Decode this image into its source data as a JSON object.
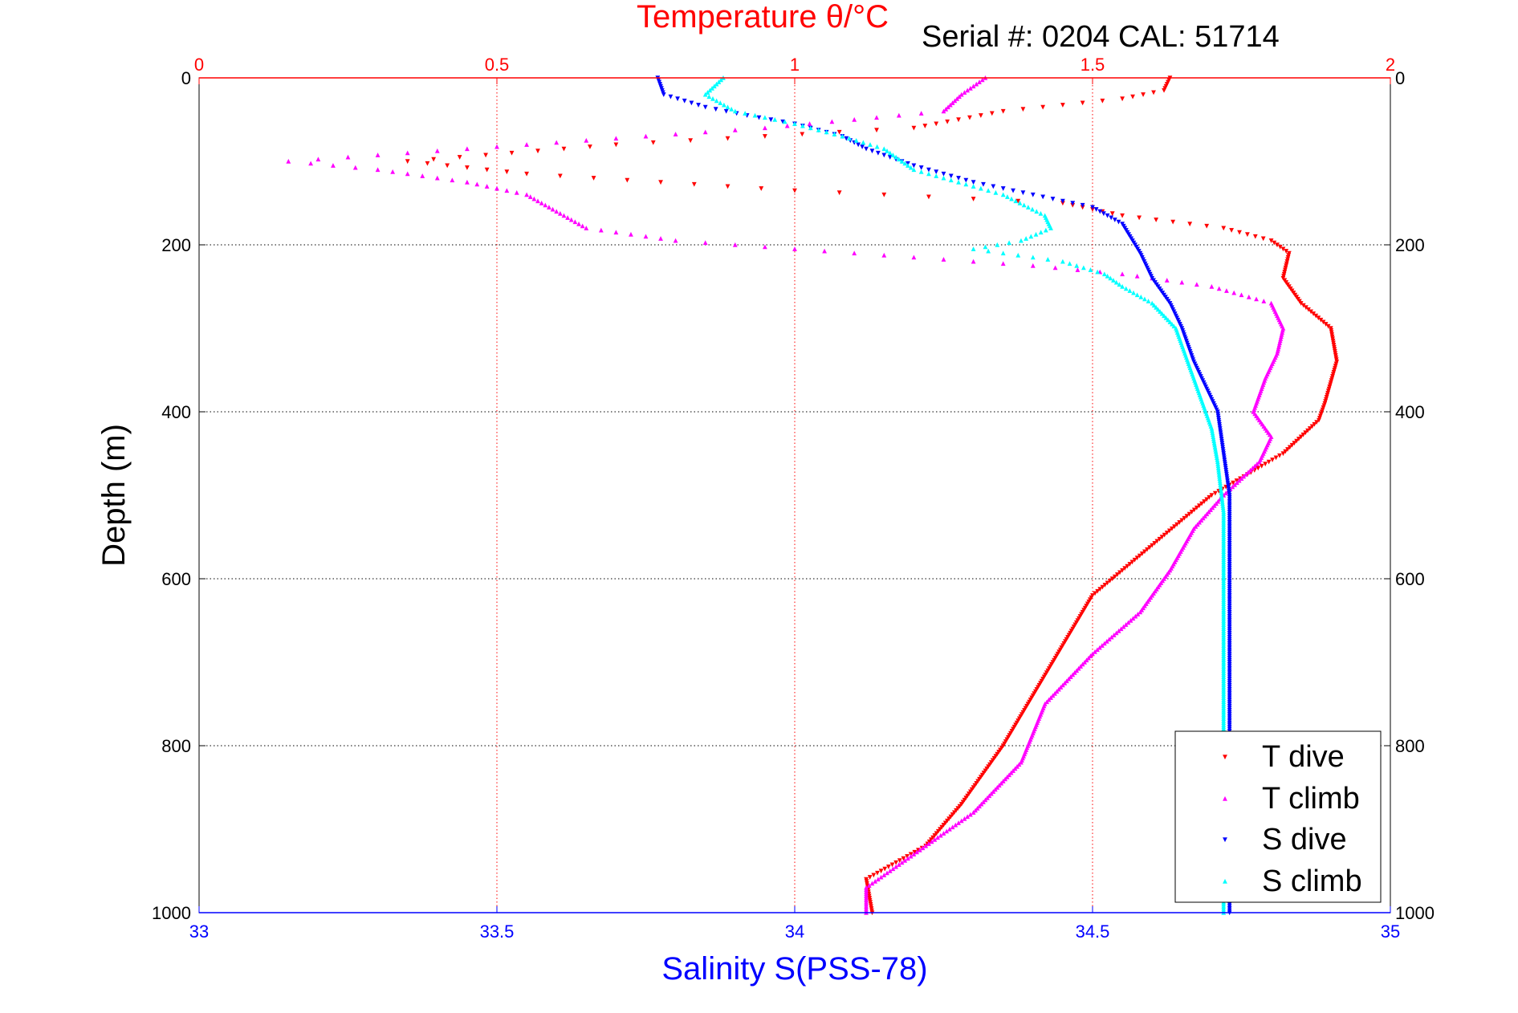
{
  "header": {
    "top_title": "Temperature θ/°C",
    "serial": "Serial #: 0204  CAL: 51714"
  },
  "chart_data": {
    "type": "scatter",
    "title": "Temperature θ/°C",
    "subtitle": "Serial #: 0204  CAL: 51714",
    "ylabel": "Depth (m)",
    "xlabel_bottom": "Salinity S(PSS-78)",
    "xlabel_top": "Temperature θ/°C",
    "y_axis": {
      "reversed": true,
      "ylim": [
        0,
        1000
      ],
      "ticks": [
        0,
        200,
        400,
        600,
        800,
        1000
      ]
    },
    "x_axis_bottom": {
      "xlim": [
        33,
        35
      ],
      "ticks": [
        33,
        33.5,
        34,
        34.5,
        35
      ],
      "tick_labels": [
        "33",
        "33.5",
        "34",
        "34.5",
        "35"
      ]
    },
    "x_axis_top": {
      "xlim": [
        0,
        2
      ],
      "ticks": [
        0,
        0.5,
        1,
        1.5,
        2
      ],
      "tick_labels": [
        "0",
        "0.5",
        "1",
        "1.5",
        "2"
      ]
    },
    "grid": true,
    "legend": {
      "placement": "bottom-right"
    },
    "colors": {
      "t_dive": "#ff0000",
      "t_climb": "#ff00ff",
      "s_dive": "#0000ff",
      "s_climb": "#00ffff",
      "top_axis": "#ff0000",
      "bottom_axis": "#0000ff"
    },
    "series": [
      {
        "name": "T dive",
        "axis": "top",
        "marker": "triangle-down",
        "points": [
          [
            1.63,
            0
          ],
          [
            1.62,
            15
          ],
          [
            1.55,
            25
          ],
          [
            1.35,
            40
          ],
          [
            1.2,
            60
          ],
          [
            0.7,
            80
          ],
          [
            0.35,
            100
          ],
          [
            0.55,
            115
          ],
          [
            1.0,
            135
          ],
          [
            1.45,
            150
          ],
          [
            1.55,
            165
          ],
          [
            1.72,
            180
          ],
          [
            1.8,
            195
          ],
          [
            1.83,
            210
          ],
          [
            1.82,
            240
          ],
          [
            1.85,
            270
          ],
          [
            1.9,
            300
          ],
          [
            1.91,
            340
          ],
          [
            1.89,
            390
          ],
          [
            1.88,
            410
          ],
          [
            1.82,
            450
          ],
          [
            1.7,
            500
          ],
          [
            1.6,
            560
          ],
          [
            1.5,
            620
          ],
          [
            1.45,
            680
          ],
          [
            1.4,
            740
          ],
          [
            1.35,
            800
          ],
          [
            1.28,
            870
          ],
          [
            1.22,
            920
          ],
          [
            1.12,
            960
          ],
          [
            1.13,
            1000
          ]
        ]
      },
      {
        "name": "T climb",
        "axis": "top",
        "marker": "triangle-up",
        "points": [
          [
            1.32,
            0
          ],
          [
            1.28,
            20
          ],
          [
            1.25,
            40
          ],
          [
            0.95,
            60
          ],
          [
            0.55,
            80
          ],
          [
            0.15,
            100
          ],
          [
            0.3,
            110
          ],
          [
            0.45,
            125
          ],
          [
            0.55,
            140
          ],
          [
            0.6,
            160
          ],
          [
            0.65,
            180
          ],
          [
            0.8,
            195
          ],
          [
            1.1,
            210
          ],
          [
            1.4,
            225
          ],
          [
            1.55,
            235
          ],
          [
            1.7,
            250
          ],
          [
            1.8,
            270
          ],
          [
            1.82,
            300
          ],
          [
            1.81,
            330
          ],
          [
            1.79,
            360
          ],
          [
            1.77,
            400
          ],
          [
            1.8,
            430
          ],
          [
            1.78,
            460
          ],
          [
            1.72,
            500
          ],
          [
            1.67,
            540
          ],
          [
            1.63,
            590
          ],
          [
            1.58,
            640
          ],
          [
            1.5,
            690
          ],
          [
            1.42,
            750
          ],
          [
            1.38,
            820
          ],
          [
            1.3,
            880
          ],
          [
            1.2,
            930
          ],
          [
            1.12,
            970
          ],
          [
            1.12,
            1000
          ]
        ]
      },
      {
        "name": "S dive",
        "axis": "bottom",
        "marker": "triangle-down",
        "points": [
          [
            33.77,
            0
          ],
          [
            33.78,
            20
          ],
          [
            33.85,
            35
          ],
          [
            33.92,
            45
          ],
          [
            34.0,
            55
          ],
          [
            34.08,
            70
          ],
          [
            34.12,
            85
          ],
          [
            34.2,
            105
          ],
          [
            34.3,
            125
          ],
          [
            34.4,
            140
          ],
          [
            34.5,
            155
          ],
          [
            34.55,
            175
          ],
          [
            34.58,
            210
          ],
          [
            34.6,
            240
          ],
          [
            34.63,
            270
          ],
          [
            34.65,
            300
          ],
          [
            34.67,
            340
          ],
          [
            34.69,
            370
          ],
          [
            34.71,
            400
          ],
          [
            34.72,
            450
          ],
          [
            34.73,
            500
          ],
          [
            34.73,
            600
          ],
          [
            34.73,
            700
          ],
          [
            34.73,
            800
          ],
          [
            34.73,
            900
          ],
          [
            34.73,
            1000
          ]
        ]
      },
      {
        "name": "S climb",
        "axis": "bottom",
        "marker": "triangle-up",
        "points": [
          [
            33.88,
            0
          ],
          [
            33.85,
            20
          ],
          [
            33.9,
            40
          ],
          [
            34.0,
            55
          ],
          [
            34.08,
            70
          ],
          [
            34.15,
            85
          ],
          [
            34.2,
            110
          ],
          [
            34.35,
            140
          ],
          [
            34.42,
            165
          ],
          [
            34.43,
            180
          ],
          [
            34.38,
            195
          ],
          [
            34.3,
            205
          ],
          [
            34.45,
            220
          ],
          [
            34.52,
            235
          ],
          [
            34.55,
            250
          ],
          [
            34.6,
            270
          ],
          [
            34.64,
            300
          ],
          [
            34.66,
            340
          ],
          [
            34.68,
            380
          ],
          [
            34.7,
            420
          ],
          [
            34.71,
            460
          ],
          [
            34.72,
            520
          ],
          [
            34.72,
            600
          ],
          [
            34.72,
            700
          ],
          [
            34.72,
            800
          ],
          [
            34.72,
            900
          ],
          [
            34.72,
            1000
          ]
        ]
      }
    ]
  }
}
